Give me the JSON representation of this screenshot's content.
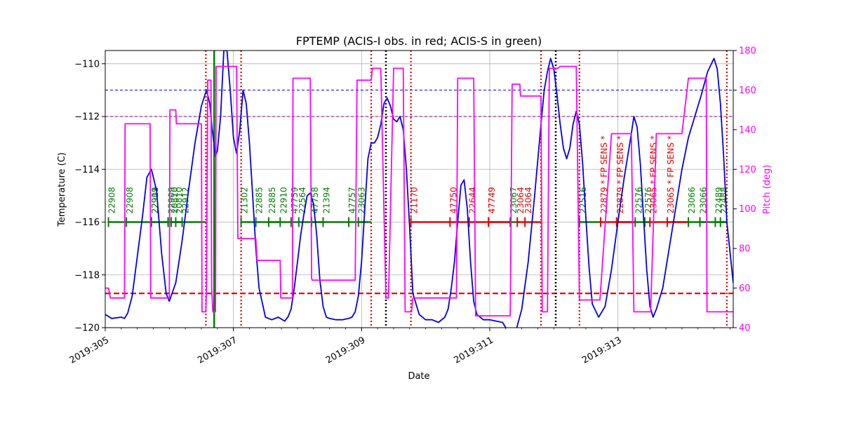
{
  "chart_data": {
    "type": "line",
    "title": "FPTEMP (ACIS-I obs. in red; ACIS-S in green)",
    "xlabel": "Date",
    "ylabel": "Temperature (C)",
    "y2label": "Pitch (deg)",
    "xlim": [
      305.0,
      314.8
    ],
    "ylim": [
      -120,
      -109.5
    ],
    "y2lim": [
      40,
      180
    ],
    "x_ticks": [
      {
        "value": 305,
        "label": "2019:305"
      },
      {
        "value": 307,
        "label": "2019:307"
      },
      {
        "value": 309,
        "label": "2019:309"
      },
      {
        "value": 311,
        "label": "2019:311"
      },
      {
        "value": 313,
        "label": "2019:313"
      }
    ],
    "y_ticks": [
      -120,
      -118,
      -116,
      -114,
      -112,
      -110
    ],
    "y2_ticks": [
      40,
      60,
      80,
      100,
      120,
      140,
      160,
      180
    ],
    "grid": true,
    "colors": {
      "temperature": "#0000ee",
      "pitch": "#ff00ff",
      "acis_i": "#ee0000",
      "acis_s": "#008000",
      "limit_blue": "#0000ee",
      "limit_purple": "#800080",
      "limit_red": "#ee0000",
      "black_marker": "#000000"
    },
    "horizontal_lines": [
      {
        "y": -111.0,
        "color": "blue",
        "style": "dashed"
      },
      {
        "y": -112.0,
        "color": "purple",
        "style": "dashed"
      },
      {
        "y": -118.7,
        "color": "red",
        "style": "dashed"
      }
    ],
    "vertical_lines_red": [
      306.57,
      307.12,
      309.15,
      309.77,
      311.8,
      312.4,
      314.7
    ],
    "vertical_lines_black": [
      309.38,
      312.03
    ],
    "vertical_lines_green": [
      306.7
    ],
    "obs_y": -116,
    "observations": [
      {
        "id": "22908",
        "start": 305.05,
        "end": 305.33,
        "instrument": "ACIS-S"
      },
      {
        "id": "22908",
        "start": 305.33,
        "end": 305.72,
        "instrument": "ACIS-S"
      },
      {
        "id": "22911",
        "start": 305.72,
        "end": 306.2,
        "instrument": "ACIS-S"
      },
      {
        "id": "22909",
        "start": 305.72,
        "end": 306.0,
        "instrument": "ACIS-S"
      },
      {
        "id": "22909",
        "start": 305.98,
        "end": 306.2,
        "instrument": "ACIS-S"
      },
      {
        "id": "20810",
        "start": 306.03,
        "end": 306.2,
        "instrument": "ACIS-S"
      },
      {
        "id": "20810",
        "start": 306.1,
        "end": 306.2,
        "instrument": "ACIS-S"
      },
      {
        "id": "22912",
        "start": 306.2,
        "end": 306.57,
        "instrument": "ACIS-S"
      },
      {
        "id": "21302",
        "start": 307.12,
        "end": 307.35,
        "instrument": "ACIS-S"
      },
      {
        "id": "22885",
        "start": 307.35,
        "end": 307.73,
        "instrument": "ACIS-S"
      },
      {
        "id": "22885",
        "start": 307.55,
        "end": 307.73,
        "instrument": "ACIS-S"
      },
      {
        "id": "22910",
        "start": 307.73,
        "end": 307.93,
        "instrument": "ACIS-S"
      },
      {
        "id": "47759",
        "start": 307.9,
        "end": 308.02,
        "instrument": "ACIS-S"
      },
      {
        "id": "22564",
        "start": 308.02,
        "end": 308.4,
        "instrument": "ACIS-S"
      },
      {
        "id": "47758",
        "start": 308.22,
        "end": 308.4,
        "instrument": "ACIS-S"
      },
      {
        "id": "21394",
        "start": 308.4,
        "end": 308.8,
        "instrument": "ACIS-S"
      },
      {
        "id": "47757",
        "start": 308.8,
        "end": 309.1,
        "instrument": "ACIS-S"
      },
      {
        "id": "23063",
        "start": 308.95,
        "end": 309.15,
        "instrument": "ACIS-S"
      },
      {
        "id": "21170",
        "start": 309.77,
        "end": 310.38,
        "instrument": "ACIS-I"
      },
      {
        "id": "47750",
        "start": 310.38,
        "end": 310.68,
        "instrument": "ACIS-I"
      },
      {
        "id": "22644",
        "start": 310.68,
        "end": 311.32,
        "instrument": "ACIS-I"
      },
      {
        "id": "47749",
        "start": 310.98,
        "end": 311.32,
        "instrument": "ACIS-I"
      },
      {
        "id": "23067",
        "start": 311.32,
        "end": 311.47,
        "instrument": "ACIS-S"
      },
      {
        "id": "23064",
        "start": 311.43,
        "end": 311.55,
        "instrument": "ACIS-I"
      },
      {
        "id": "23064",
        "start": 311.55,
        "end": 311.8,
        "instrument": "ACIS-I"
      },
      {
        "id": "22516",
        "start": 312.4,
        "end": 312.73,
        "instrument": "ACIS-S"
      },
      {
        "id": "22879 * FP SENS *",
        "start": 312.73,
        "end": 313.27,
        "instrument": "ACIS-I"
      },
      {
        "id": "22879 * FP SENS *",
        "start": 312.98,
        "end": 313.27,
        "instrument": "ACIS-I"
      },
      {
        "id": "22576",
        "start": 313.27,
        "end": 313.5,
        "instrument": "ACIS-S"
      },
      {
        "id": "22576",
        "start": 313.42,
        "end": 313.5,
        "instrument": "ACIS-S"
      },
      {
        "id": "23065 * FP SENS *",
        "start": 313.5,
        "end": 314.1,
        "instrument": "ACIS-I"
      },
      {
        "id": "23065 * FP SENS *",
        "start": 313.77,
        "end": 314.1,
        "instrument": "ACIS-I"
      },
      {
        "id": "23066",
        "start": 314.1,
        "end": 314.38,
        "instrument": "ACIS-S"
      },
      {
        "id": "23066",
        "start": 314.28,
        "end": 314.7,
        "instrument": "ACIS-S"
      },
      {
        "id": "22489",
        "start": 314.52,
        "end": 314.7,
        "instrument": "ACIS-S"
      },
      {
        "id": "22488",
        "start": 314.6,
        "end": 314.7,
        "instrument": "ACIS-S"
      }
    ],
    "series": [
      {
        "axis": "temperature",
        "x": [
          305.0,
          305.1,
          305.25,
          305.3,
          305.35,
          305.42,
          305.5,
          305.58,
          305.65,
          305.72,
          305.8,
          305.88,
          305.95,
          306.0,
          306.1,
          306.2,
          306.3,
          306.4,
          306.5,
          306.58,
          306.63,
          306.67,
          306.72,
          306.75,
          306.8,
          306.85,
          306.9,
          306.95,
          307.0,
          307.05,
          307.1,
          307.15,
          307.2,
          307.25,
          307.3,
          307.35,
          307.4,
          307.5,
          307.6,
          307.7,
          307.8,
          307.85,
          307.9,
          307.95,
          308.0,
          308.05,
          308.1,
          308.15,
          308.2,
          308.25,
          308.3,
          308.35,
          308.4,
          308.45,
          308.5,
          308.6,
          308.7,
          308.8,
          308.85,
          308.9,
          308.95,
          309.0,
          309.05,
          309.1,
          309.15,
          309.2,
          309.25,
          309.3,
          309.35,
          309.4,
          309.45,
          309.5,
          309.55,
          309.6,
          309.65,
          309.7,
          309.75,
          309.8,
          309.9,
          310.0,
          310.1,
          310.2,
          310.3,
          310.35,
          310.4,
          310.45,
          310.5,
          310.55,
          310.6,
          310.65,
          310.7,
          310.75,
          310.8,
          310.85,
          310.9,
          311.0,
          311.1,
          311.2,
          311.25,
          311.28,
          311.3,
          311.4,
          311.5,
          311.6,
          311.7,
          311.8,
          311.85,
          311.9,
          311.95,
          312.0,
          312.05,
          312.1,
          312.15,
          312.2,
          312.25,
          312.3,
          312.35,
          312.4,
          312.45,
          312.5,
          312.55,
          312.6,
          312.7,
          312.8,
          312.9,
          313.0,
          313.1,
          313.2,
          313.25,
          313.3,
          313.35,
          313.4,
          313.45,
          313.5,
          313.55,
          313.6,
          313.7,
          313.8,
          313.9,
          314.0,
          314.1,
          314.2,
          314.3,
          314.4,
          314.5,
          314.55,
          314.6,
          314.65,
          314.7,
          314.8
        ],
        "y": [
          -119.5,
          -119.65,
          -119.6,
          -119.65,
          -119.45,
          -118.8,
          -117.3,
          -115.8,
          -114.3,
          -114.0,
          -114.8,
          -117.2,
          -118.7,
          -119.0,
          -118.3,
          -116.7,
          -114.8,
          -113.0,
          -111.6,
          -111.0,
          -111.5,
          -112.5,
          -113.5,
          -113.3,
          -112.0,
          -109.5,
          -109.5,
          -111.0,
          -112.8,
          -113.4,
          -112.5,
          -111.0,
          -111.5,
          -113.0,
          -115.0,
          -117.0,
          -118.5,
          -119.6,
          -119.7,
          -119.6,
          -119.75,
          -119.6,
          -119.3,
          -118.5,
          -117.5,
          -116.5,
          -115.7,
          -115.0,
          -114.9,
          -115.3,
          -116.5,
          -118.2,
          -119.2,
          -119.6,
          -119.65,
          -119.7,
          -119.7,
          -119.65,
          -119.6,
          -119.4,
          -118.8,
          -117.5,
          -115.5,
          -113.6,
          -113.0,
          -113.0,
          -112.8,
          -112.3,
          -111.5,
          -111.3,
          -111.6,
          -112.1,
          -112.2,
          -112.0,
          -112.5,
          -114.0,
          -116.2,
          -118.7,
          -119.5,
          -119.7,
          -119.7,
          -119.8,
          -119.6,
          -119.3,
          -118.5,
          -117.5,
          -116.0,
          -114.6,
          -114.4,
          -115.5,
          -117.5,
          -119.0,
          -119.5,
          -119.6,
          -119.7,
          -119.7,
          -119.75,
          -119.8,
          -120.0,
          -120.4,
          -120.6,
          -120.2,
          -119.3,
          -117.5,
          -115.0,
          -112.3,
          -111.0,
          -110.3,
          -109.8,
          -110.2,
          -111.2,
          -112.3,
          -113.2,
          -113.6,
          -113.2,
          -112.3,
          -111.8,
          -112.3,
          -113.8,
          -115.8,
          -117.7,
          -119.1,
          -119.6,
          -119.2,
          -117.8,
          -116.0,
          -114.3,
          -112.8,
          -112.0,
          -112.4,
          -113.8,
          -115.8,
          -117.8,
          -119.2,
          -119.6,
          -119.3,
          -118.5,
          -117.0,
          -115.5,
          -114.0,
          -112.8,
          -112.0,
          -111.2,
          -110.3,
          -109.8,
          -110.2,
          -111.5,
          -113.5,
          -116.0,
          -118.3
        ]
      },
      {
        "axis": "pitch",
        "x": [
          305.0,
          305.03,
          305.05,
          305.08,
          305.15,
          305.3,
          305.31,
          305.35,
          305.5,
          305.7,
          305.71,
          305.72,
          306.0,
          306.01,
          306.02,
          306.1,
          306.11,
          306.3,
          306.5,
          306.51,
          306.56,
          306.57,
          306.58,
          306.6,
          306.65,
          306.66,
          306.68,
          306.72,
          306.73,
          306.78,
          307.05,
          307.07,
          307.1,
          307.12,
          307.3,
          307.35,
          307.37,
          307.5,
          307.72,
          307.73,
          307.74,
          307.9,
          307.92,
          307.93,
          308.0,
          308.15,
          308.2,
          308.22,
          308.23,
          308.4,
          308.6,
          308.8,
          308.9,
          308.93,
          309.15,
          309.17,
          309.3,
          309.38,
          309.42,
          309.5,
          309.65,
          309.68,
          309.76,
          309.78,
          309.8,
          310.0,
          310.2,
          310.4,
          310.42,
          310.44,
          310.48,
          310.5,
          310.7,
          310.73,
          310.75,
          310.78,
          310.8,
          311.0,
          311.2,
          311.32,
          311.35,
          311.45,
          311.47,
          311.48,
          311.5,
          311.7,
          311.8,
          311.82,
          311.88,
          311.9,
          311.93,
          311.96,
          312.0,
          312.05,
          312.06,
          312.1,
          312.13,
          312.2,
          312.3,
          312.35,
          312.4,
          312.5,
          312.6,
          312.7,
          312.72,
          312.9,
          313.0,
          313.2,
          313.21,
          313.25,
          313.4,
          313.5,
          313.51,
          313.6,
          313.8,
          314.0,
          314.1,
          314.2,
          314.3,
          314.38,
          314.39,
          314.5,
          314.6,
          314.7,
          314.8
        ],
        "y": [
          60,
          60,
          60,
          55,
          55,
          55,
          143,
          143,
          143,
          143,
          55,
          55,
          55,
          150,
          150,
          150,
          143,
          143,
          143,
          48,
          48,
          48,
          60,
          165,
          165,
          60,
          48,
          48,
          172,
          172,
          172,
          85,
          85,
          85,
          85,
          85,
          74,
          74,
          74,
          74,
          55,
          55,
          55,
          166,
          166,
          166,
          166,
          65,
          64,
          64,
          64,
          64,
          64,
          165,
          165,
          171,
          171,
          55,
          55,
          171,
          171,
          48,
          48,
          48,
          55,
          55,
          55,
          55,
          55,
          55,
          55,
          166,
          166,
          166,
          166,
          46,
          46,
          46,
          46,
          46,
          163,
          163,
          163,
          157,
          157,
          157,
          157,
          48,
          48,
          48,
          171,
          171,
          171,
          171,
          171,
          172,
          172,
          172,
          172,
          172,
          54,
          54,
          54,
          54,
          54,
          138,
          138,
          138,
          138,
          48,
          48,
          48,
          48,
          138,
          138,
          138,
          166,
          166,
          166,
          166,
          48,
          48,
          48,
          48,
          48
        ]
      }
    ]
  }
}
